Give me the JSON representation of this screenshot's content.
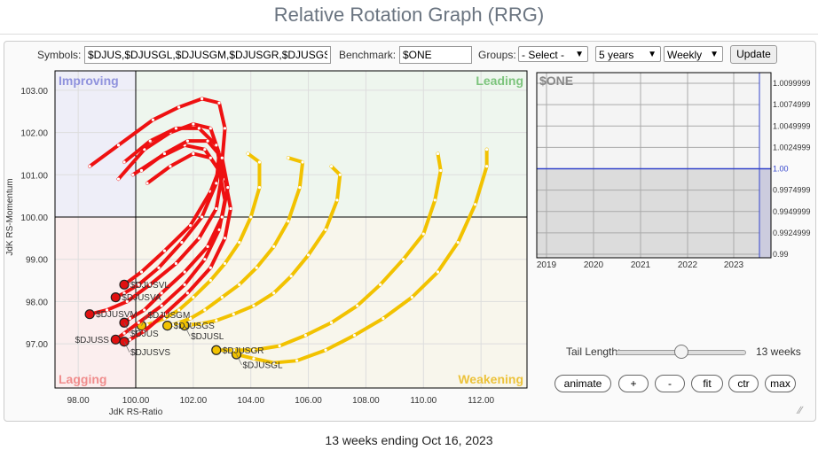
{
  "title": "Relative Rotation Graph (RRG)",
  "controls": {
    "symbols_label": "Symbols:",
    "symbols_value": "$DJUS,$DJUSGL,$DJUSGM,$DJUSGR,$DJUSGS",
    "benchmark_label": "Benchmark:",
    "benchmark_value": "$ONE",
    "groups_label": "Groups:",
    "groups_value": "- Select -",
    "period_value": "5 years",
    "interval_value": "Weekly",
    "update_label": "Update"
  },
  "chart_data": {
    "type": "scatter",
    "xlabel": "JdK RS-Ratio",
    "ylabel": "JdK RS-Momentum",
    "xlim": [
      97.0,
      113.5
    ],
    "ylim": [
      95.8,
      103.5
    ],
    "x_ticks": [
      "98.00",
      "100.00",
      "102.00",
      "104.00",
      "106.00",
      "108.00",
      "110.00",
      "112.00"
    ],
    "y_ticks": [
      "97.00",
      "98.00",
      "99.00",
      "100.00",
      "101.00",
      "102.00",
      "103.00"
    ],
    "quadrants": {
      "improving": "Improving",
      "leading": "Leading",
      "lagging": "Lagging",
      "weakening": "Weakening"
    },
    "quadrant_colors": {
      "improving": "#eeeef8",
      "leading": "#eef6ee",
      "lagging": "#fbeeee",
      "weakening": "#f8f6ec"
    },
    "series": [
      {
        "name": "$DJUSVL",
        "color": "#ee1111",
        "points": [
          [
            98.4,
            101.2
          ],
          [
            99.4,
            101.7
          ],
          [
            100.6,
            102.3
          ],
          [
            101.5,
            102.6
          ],
          [
            102.3,
            102.8
          ],
          [
            102.9,
            102.7
          ],
          [
            103.1,
            102.1
          ],
          [
            103.0,
            101.3
          ],
          [
            102.6,
            100.6
          ],
          [
            101.9,
            99.8
          ],
          [
            101.0,
            99.2
          ],
          [
            100.2,
            98.7
          ],
          [
            99.6,
            98.4
          ]
        ]
      },
      {
        "name": "$DJUSVA",
        "color": "#ee1111",
        "points": [
          [
            99.4,
            100.9
          ],
          [
            100.3,
            101.6
          ],
          [
            101.2,
            102.0
          ],
          [
            102.0,
            102.2
          ],
          [
            102.6,
            102.1
          ],
          [
            102.9,
            101.5
          ],
          [
            102.8,
            100.8
          ],
          [
            102.3,
            100.0
          ],
          [
            101.6,
            99.4
          ],
          [
            100.8,
            98.8
          ],
          [
            100.1,
            98.4
          ],
          [
            99.6,
            98.2
          ],
          [
            99.3,
            98.1
          ]
        ]
      },
      {
        "name": "$DJUSVM",
        "color": "#ee1111",
        "points": [
          [
            99.6,
            101.3
          ],
          [
            100.5,
            101.8
          ],
          [
            101.4,
            102.1
          ],
          [
            102.2,
            102.1
          ],
          [
            102.8,
            101.7
          ],
          [
            103.0,
            101.0
          ],
          [
            102.8,
            100.2
          ],
          [
            102.2,
            99.5
          ],
          [
            101.4,
            98.9
          ],
          [
            100.5,
            98.4
          ],
          [
            99.7,
            98.0
          ],
          [
            99.0,
            97.8
          ],
          [
            98.4,
            97.7
          ]
        ]
      },
      {
        "name": "$DJUSS",
        "color": "#ee1111",
        "points": [
          [
            99.9,
            101.0
          ],
          [
            100.8,
            101.4
          ],
          [
            101.7,
            101.7
          ],
          [
            102.4,
            101.6
          ],
          [
            102.9,
            101.1
          ],
          [
            103.1,
            100.4
          ],
          [
            102.9,
            99.7
          ],
          [
            102.4,
            99.0
          ],
          [
            101.7,
            98.4
          ],
          [
            100.9,
            97.9
          ],
          [
            100.1,
            97.5
          ],
          [
            99.6,
            97.25
          ],
          [
            99.3,
            97.1
          ]
        ]
      },
      {
        "name": "$DJUSVS",
        "color": "#ee1111",
        "points": [
          [
            100.4,
            100.8
          ],
          [
            101.2,
            101.2
          ],
          [
            102.0,
            101.5
          ],
          [
            102.6,
            101.4
          ],
          [
            103.1,
            100.9
          ],
          [
            103.3,
            100.2
          ],
          [
            103.1,
            99.5
          ],
          [
            102.6,
            98.8
          ],
          [
            101.8,
            98.2
          ],
          [
            101.0,
            97.7
          ],
          [
            100.3,
            97.3
          ],
          [
            99.8,
            97.1
          ],
          [
            99.6,
            97.05
          ]
        ]
      },
      {
        "name": "$DJUS",
        "color": "#ee1111",
        "points": [
          [
            100.2,
            101.1
          ],
          [
            101.0,
            101.5
          ],
          [
            101.8,
            101.8
          ],
          [
            102.5,
            101.8
          ],
          [
            103.0,
            101.4
          ],
          [
            103.2,
            100.7
          ],
          [
            103.0,
            100.0
          ],
          [
            102.5,
            99.3
          ],
          [
            101.7,
            98.7
          ],
          [
            100.9,
            98.2
          ],
          [
            100.3,
            97.8
          ],
          [
            99.8,
            97.6
          ],
          [
            99.6,
            97.5
          ]
        ]
      },
      {
        "name": "$DJUSGM",
        "color": "#f2c200",
        "points": [
          [
            103.9,
            101.5
          ],
          [
            104.3,
            101.3
          ],
          [
            104.3,
            100.7
          ],
          [
            104.0,
            100.0
          ],
          [
            103.6,
            99.4
          ],
          [
            103.1,
            98.9
          ],
          [
            102.6,
            98.5
          ],
          [
            102.0,
            98.1
          ],
          [
            101.5,
            97.8
          ],
          [
            101.0,
            97.6
          ],
          [
            100.6,
            97.5
          ],
          [
            100.4,
            97.45
          ],
          [
            100.2,
            97.43
          ]
        ]
      },
      {
        "name": "$DJUSGS",
        "color": "#f2c200",
        "points": [
          [
            105.3,
            101.4
          ],
          [
            105.8,
            101.3
          ],
          [
            105.7,
            100.7
          ],
          [
            105.3,
            99.9
          ],
          [
            104.8,
            99.3
          ],
          [
            104.2,
            98.8
          ],
          [
            103.6,
            98.4
          ],
          [
            103.0,
            98.1
          ],
          [
            102.4,
            97.8
          ],
          [
            101.9,
            97.6
          ],
          [
            101.5,
            97.5
          ],
          [
            101.3,
            97.45
          ],
          [
            101.1,
            97.43
          ]
        ]
      },
      {
        "name": "$DJUSL",
        "color": "#f2c200",
        "points": [
          [
            106.8,
            101.2
          ],
          [
            107.1,
            101.0
          ],
          [
            107.0,
            100.4
          ],
          [
            106.6,
            99.7
          ],
          [
            106.0,
            99.1
          ],
          [
            105.4,
            98.6
          ],
          [
            104.8,
            98.2
          ],
          [
            104.1,
            97.9
          ],
          [
            103.4,
            97.7
          ],
          [
            102.8,
            97.55
          ],
          [
            102.3,
            97.48
          ],
          [
            101.9,
            97.45
          ],
          [
            101.7,
            97.43
          ]
        ]
      },
      {
        "name": "$DJUSGR",
        "color": "#f2c200",
        "points": [
          [
            110.5,
            101.5
          ],
          [
            110.6,
            101.1
          ],
          [
            110.4,
            100.4
          ],
          [
            110.0,
            99.6
          ],
          [
            109.3,
            99.0
          ],
          [
            108.5,
            98.4
          ],
          [
            107.7,
            97.9
          ],
          [
            106.8,
            97.5
          ],
          [
            105.9,
            97.2
          ],
          [
            105.0,
            96.95
          ],
          [
            104.1,
            96.85
          ],
          [
            103.4,
            96.85
          ],
          [
            102.8,
            96.85
          ]
        ]
      },
      {
        "name": "$DJUSGL",
        "color": "#f2c200",
        "points": [
          [
            112.2,
            101.6
          ],
          [
            112.2,
            101.2
          ],
          [
            111.8,
            100.3
          ],
          [
            111.2,
            99.4
          ],
          [
            110.5,
            98.7
          ],
          [
            109.6,
            98.1
          ],
          [
            108.6,
            97.6
          ],
          [
            107.6,
            97.2
          ],
          [
            106.6,
            96.85
          ],
          [
            105.6,
            96.6
          ],
          [
            104.8,
            96.55
          ],
          [
            104.1,
            96.65
          ],
          [
            103.5,
            96.75
          ]
        ]
      }
    ]
  },
  "benchmark_chart": {
    "title": "$ONE",
    "x_ticks": [
      "2019",
      "2020",
      "2021",
      "2022",
      "2023"
    ],
    "y_ticks": [
      "1.0099999",
      "1.0074999",
      "1.0049999",
      "1.0024999",
      "1.00",
      "0.9974999",
      "0.9949999",
      "0.9924999",
      "0.99"
    ],
    "value": 1.0
  },
  "tail": {
    "label": "Tail Length:",
    "value_label": "13 weeks",
    "weeks": 13,
    "max_weeks": 26
  },
  "buttons": {
    "animate": "animate",
    "plus": "+",
    "minus": "-",
    "fit": "fit",
    "ctr": "ctr",
    "max": "max"
  },
  "caption": "13 weeks ending Oct 16, 2023"
}
